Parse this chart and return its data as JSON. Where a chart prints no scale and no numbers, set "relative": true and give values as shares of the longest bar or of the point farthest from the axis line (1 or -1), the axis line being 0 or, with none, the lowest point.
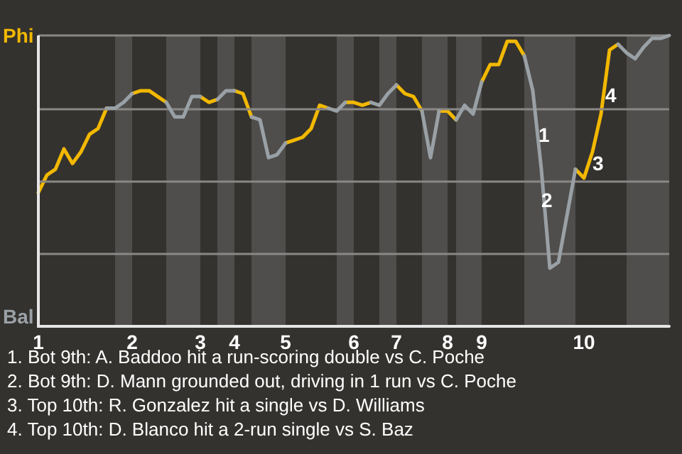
{
  "chart_data": {
    "type": "line",
    "relative": true,
    "categories": [
      "1",
      null,
      null,
      null,
      null,
      null,
      null,
      null,
      null,
      null,
      null,
      "2",
      null,
      null,
      null,
      null,
      null,
      null,
      null,
      "3",
      null,
      null,
      null,
      "4",
      null,
      null,
      null,
      null,
      null,
      "5",
      null,
      null,
      null,
      null,
      null,
      null,
      null,
      "6",
      null,
      null,
      null,
      null,
      "7",
      null,
      null,
      null,
      null,
      null,
      "8",
      null,
      null,
      null,
      "9",
      null,
      null,
      null,
      null,
      null,
      null,
      null,
      null,
      null,
      null,
      null,
      "10",
      null,
      null,
      null,
      null,
      null,
      null,
      null,
      null,
      null,
      null
    ],
    "series": [
      {
        "color": "#f2b800",
        "values": [
          0.46,
          0.52,
          0.54,
          0.61,
          0.56,
          0.6,
          0.66,
          0.68,
          0.75,
          null,
          null,
          0.8,
          0.81,
          0.81,
          0.79,
          0.77,
          null,
          null,
          null,
          0.79,
          0.77,
          0.78,
          null,
          0.81,
          0.8,
          0.72,
          null,
          null,
          null,
          0.63,
          0.64,
          0.65,
          0.68,
          0.76,
          0.75,
          null,
          0.77,
          0.77,
          0.76,
          0.77,
          null,
          null,
          0.83,
          0.8,
          0.79,
          0.74,
          null,
          0.74,
          0.74,
          0.71,
          null,
          null,
          0.84,
          0.9,
          0.9,
          0.98,
          0.98,
          0.93,
          null,
          null,
          null,
          null,
          null,
          0.54,
          0.51,
          0.6,
          0.73,
          0.95,
          0.97,
          null,
          null,
          null,
          null,
          null,
          null
        ]
      },
      {
        "color": "#9aa1a6",
        "values": [
          null,
          null,
          null,
          null,
          null,
          null,
          null,
          null,
          0.75,
          0.75,
          0.77,
          0.8,
          null,
          null,
          null,
          0.77,
          0.72,
          0.72,
          0.79,
          0.79,
          null,
          0.78,
          0.81,
          0.81,
          null,
          0.72,
          0.71,
          0.58,
          0.59,
          0.63,
          null,
          null,
          null,
          null,
          0.75,
          0.74,
          0.77,
          null,
          null,
          0.77,
          0.76,
          0.8,
          0.83,
          null,
          null,
          0.74,
          0.58,
          0.74,
          null,
          0.71,
          0.76,
          0.73,
          0.84,
          null,
          null,
          null,
          null,
          0.93,
          0.81,
          0.54,
          0.2,
          0.22,
          0.38,
          0.54,
          null,
          null,
          null,
          null,
          0.97,
          0.94,
          0.92,
          0.96,
          0.99,
          0.99,
          1
        ]
      }
    ],
    "ref_lines": [
      {
        "axis": "y",
        "value": 0.25,
        "color": "#8a8886"
      },
      {
        "axis": "y",
        "value": 0.5,
        "color": "#8a8886"
      },
      {
        "axis": "y",
        "value": 0.75,
        "color": "#8a8886"
      },
      {
        "axis": "y",
        "value": 1,
        "color": "#8a8886"
      }
    ],
    "annotations": [
      "Phi",
      "Bal",
      "1",
      "2",
      "3",
      "4",
      "1. Bot 9th: A. Baddoo hit a run-scoring double vs C. Poche",
      "2. Bot 9th: D. Mann grounded out, driving in 1 run vs C. Poche",
      "3. Top 10th: R. Gonzalez hit a single vs D. Williams",
      "4. Top 10th: D. Blanco hit a 2-run single vs S. Baz"
    ]
  }
}
